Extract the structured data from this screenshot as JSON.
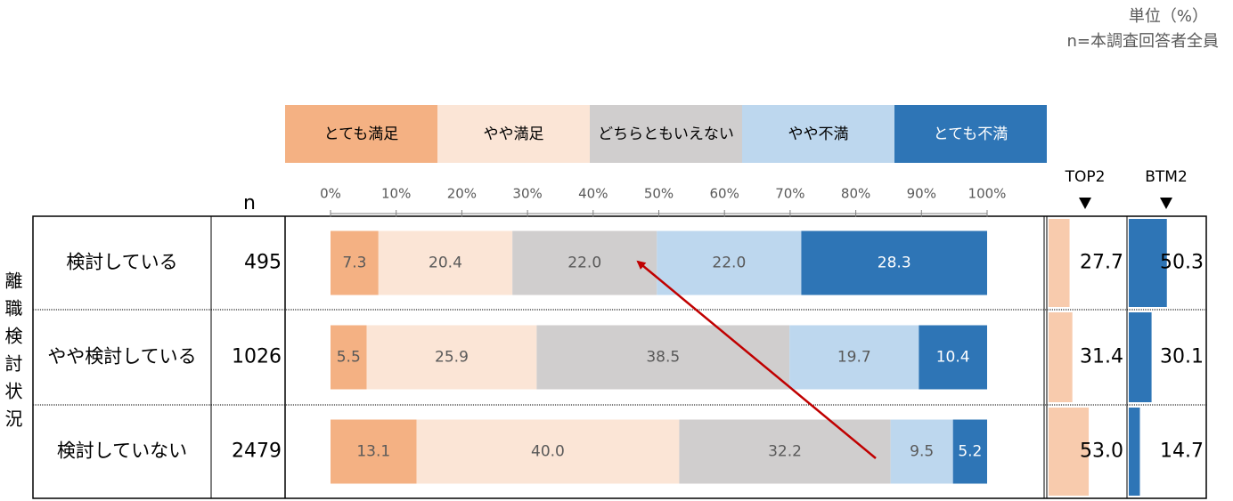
{
  "chart_data": {
    "type": "stacked-bar",
    "unit_note": "単位（%）",
    "sample_note": "n=本調査回答者全員",
    "row_group_label": "離職検討状況",
    "n_label": "n",
    "categories": [
      "検討している",
      "やや検討している",
      "検討していない"
    ],
    "n": [
      495,
      1026,
      2479
    ],
    "series": [
      {
        "name": "とても満足",
        "color": "#f4b183",
        "values": [
          7.3,
          5.5,
          13.1
        ],
        "value_labels": [
          "7.3",
          "5.5",
          "13.1"
        ]
      },
      {
        "name": "やや満足",
        "color": "#fbe5d6",
        "values": [
          20.4,
          25.9,
          40.0
        ],
        "value_labels": [
          "20.4",
          "25.9",
          "40.0"
        ]
      },
      {
        "name": "どちらともいえない",
        "color": "#d0cece",
        "values": [
          22.0,
          38.5,
          32.2
        ],
        "value_labels": [
          "22.0",
          "38.5",
          "32.2"
        ]
      },
      {
        "name": "やや不満",
        "color": "#bdd7ee",
        "values": [
          22.0,
          19.7,
          9.5
        ],
        "value_labels": [
          "22.0",
          "19.7",
          "9.5"
        ]
      },
      {
        "name": "とても不満",
        "color": "#2e75b6",
        "values": [
          28.3,
          10.4,
          5.2
        ],
        "value_labels": [
          "28.3",
          "10.4",
          "5.2"
        ]
      }
    ],
    "xlim": [
      0,
      100
    ],
    "xticks": [
      {
        "value": 0,
        "label": "0%"
      },
      {
        "value": 10,
        "label": "10%"
      },
      {
        "value": 20,
        "label": "20%"
      },
      {
        "value": 30,
        "label": "30%"
      },
      {
        "value": 40,
        "label": "40%"
      },
      {
        "value": 50,
        "label": "50%"
      },
      {
        "value": 60,
        "label": "60%"
      },
      {
        "value": 70,
        "label": "70%"
      },
      {
        "value": 80,
        "label": "80%"
      },
      {
        "value": 90,
        "label": "90%"
      },
      {
        "value": 100,
        "label": "100%"
      }
    ],
    "top2": {
      "name": "TOP2",
      "color": "#f8cbad",
      "values": [
        27.7,
        31.4,
        53.0
      ],
      "value_labels": [
        "27.7",
        "31.4",
        "53.0"
      ]
    },
    "btm2": {
      "name": "BTM2",
      "color": "#2e75b6",
      "values": [
        50.3,
        30.1,
        14.7
      ],
      "value_labels": [
        "50.3",
        "30.1",
        "14.7"
      ]
    }
  }
}
